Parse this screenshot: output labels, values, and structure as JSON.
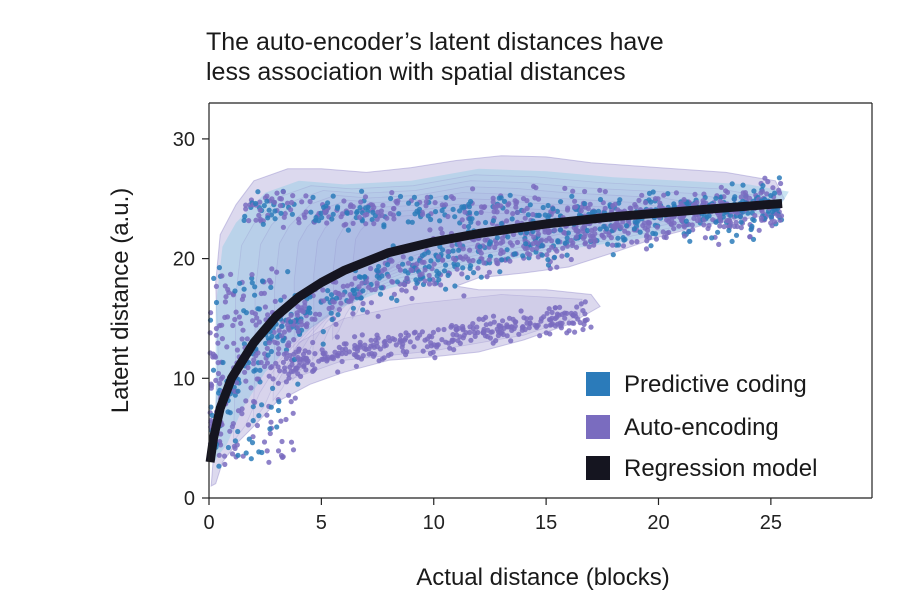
{
  "chart_data": {
    "type": "scatter",
    "title": "The auto-encoder’s latent distances have less association with spatial distances",
    "title_lines": [
      "The auto-encoder’s latent distances have",
      "less association with spatial distances"
    ],
    "xlabel": "Actual distance (blocks)",
    "ylabel": "Latent distance (a.u.)",
    "xlim": [
      0,
      29.5
    ],
    "ylim": [
      0,
      33
    ],
    "xticks": [
      0,
      5,
      10,
      15,
      20,
      25
    ],
    "yticks": [
      0,
      10,
      20,
      30
    ],
    "grid": false,
    "legend_position": "bottom-right",
    "series": [
      {
        "name": "Predictive coding",
        "kind": "scatter+density",
        "color": "#2b7bba"
      },
      {
        "name": "Auto-encoding",
        "kind": "scatter+density",
        "color": "#7a6cbf"
      },
      {
        "name": "Regression model",
        "kind": "line",
        "color": "#151520",
        "x": [
          0.05,
          0.2,
          0.5,
          1,
          2,
          3,
          4,
          5,
          6,
          8,
          10,
          12,
          15,
          18,
          20,
          22,
          25.5
        ],
        "y": [
          3,
          5,
          7.5,
          10,
          13,
          15.2,
          16.8,
          18,
          19,
          20.5,
          21.4,
          22.1,
          22.9,
          23.5,
          23.8,
          24.1,
          24.6
        ]
      }
    ]
  },
  "colors": {
    "predictive": "#2b7bba",
    "autoencoding": "#7a6cbf",
    "regression": "#151520",
    "density_pred": "#9fcde8",
    "density_auto": "#9b93cf",
    "axis": "#222222"
  }
}
